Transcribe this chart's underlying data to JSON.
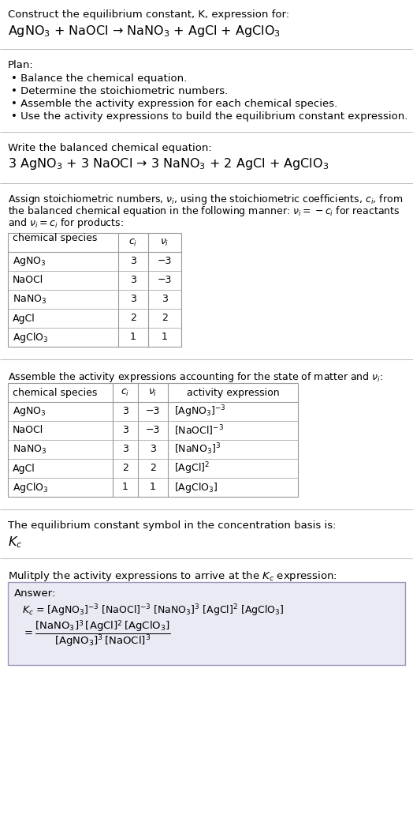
{
  "title_line1": "Construct the equilibrium constant, K, expression for:",
  "title_line2": "AgNO$_3$ + NaOCl → NaNO$_3$ + AgCl + AgClO$_3$",
  "plan_header": "Plan:",
  "plan_items": [
    "• Balance the chemical equation.",
    "• Determine the stoichiometric numbers.",
    "• Assemble the activity expression for each chemical species.",
    "• Use the activity expressions to build the equilibrium constant expression."
  ],
  "balanced_header": "Write the balanced chemical equation:",
  "balanced_eq": "3 AgNO$_3$ + 3 NaOCl → 3 NaNO$_3$ + 2 AgCl + AgClO$_3$",
  "stoich_header_parts": [
    "Assign stoichiometric numbers, $\\nu_i$, using the stoichiometric coefficients, $c_i$, from",
    "the balanced chemical equation in the following manner: $\\nu_i = -c_i$ for reactants",
    "and $\\nu_i = c_i$ for products:"
  ],
  "table1_headers": [
    "chemical species",
    "$c_i$",
    "$\\nu_i$"
  ],
  "table1_rows": [
    [
      "AgNO$_3$",
      "3",
      "−3"
    ],
    [
      "NaOCl",
      "3",
      "−3"
    ],
    [
      "NaNO$_3$",
      "3",
      "3"
    ],
    [
      "AgCl",
      "2",
      "2"
    ],
    [
      "AgClO$_3$",
      "1",
      "1"
    ]
  ],
  "activity_header": "Assemble the activity expressions accounting for the state of matter and $\\nu_i$:",
  "table2_headers": [
    "chemical species",
    "$c_i$",
    "$\\nu_i$",
    "activity expression"
  ],
  "table2_rows": [
    [
      "AgNO$_3$",
      "3",
      "−3",
      "[AgNO$_3$]$^{-3}$"
    ],
    [
      "NaOCl",
      "3",
      "−3",
      "[NaOCl]$^{-3}$"
    ],
    [
      "NaNO$_3$",
      "3",
      "3",
      "[NaNO$_3$]$^3$"
    ],
    [
      "AgCl",
      "2",
      "2",
      "[AgCl]$^2$"
    ],
    [
      "AgClO$_3$",
      "1",
      "1",
      "[AgClO$_3$]"
    ]
  ],
  "kc_header": "The equilibrium constant symbol in the concentration basis is:",
  "kc_symbol": "$K_c$",
  "multiply_header": "Mulitply the activity expressions to arrive at the $K_c$ expression:",
  "answer_label": "Answer:",
  "kc_eq1": "$K_c$ = [AgNO$_3$]$^{-3}$ [NaOCl]$^{-3}$ [NaNO$_3$]$^3$ [AgCl]$^2$ [AgClO$_3$]",
  "bg_color": "#ffffff",
  "text_color": "#000000",
  "table_border_color": "#999999",
  "answer_box_color": "#eaeaf5",
  "answer_box_border": "#9999bb",
  "separator_color": "#bbbbbb",
  "font_size": 9.5,
  "small_font": 9.0,
  "title_font": 11.5,
  "eq_font": 11.5
}
